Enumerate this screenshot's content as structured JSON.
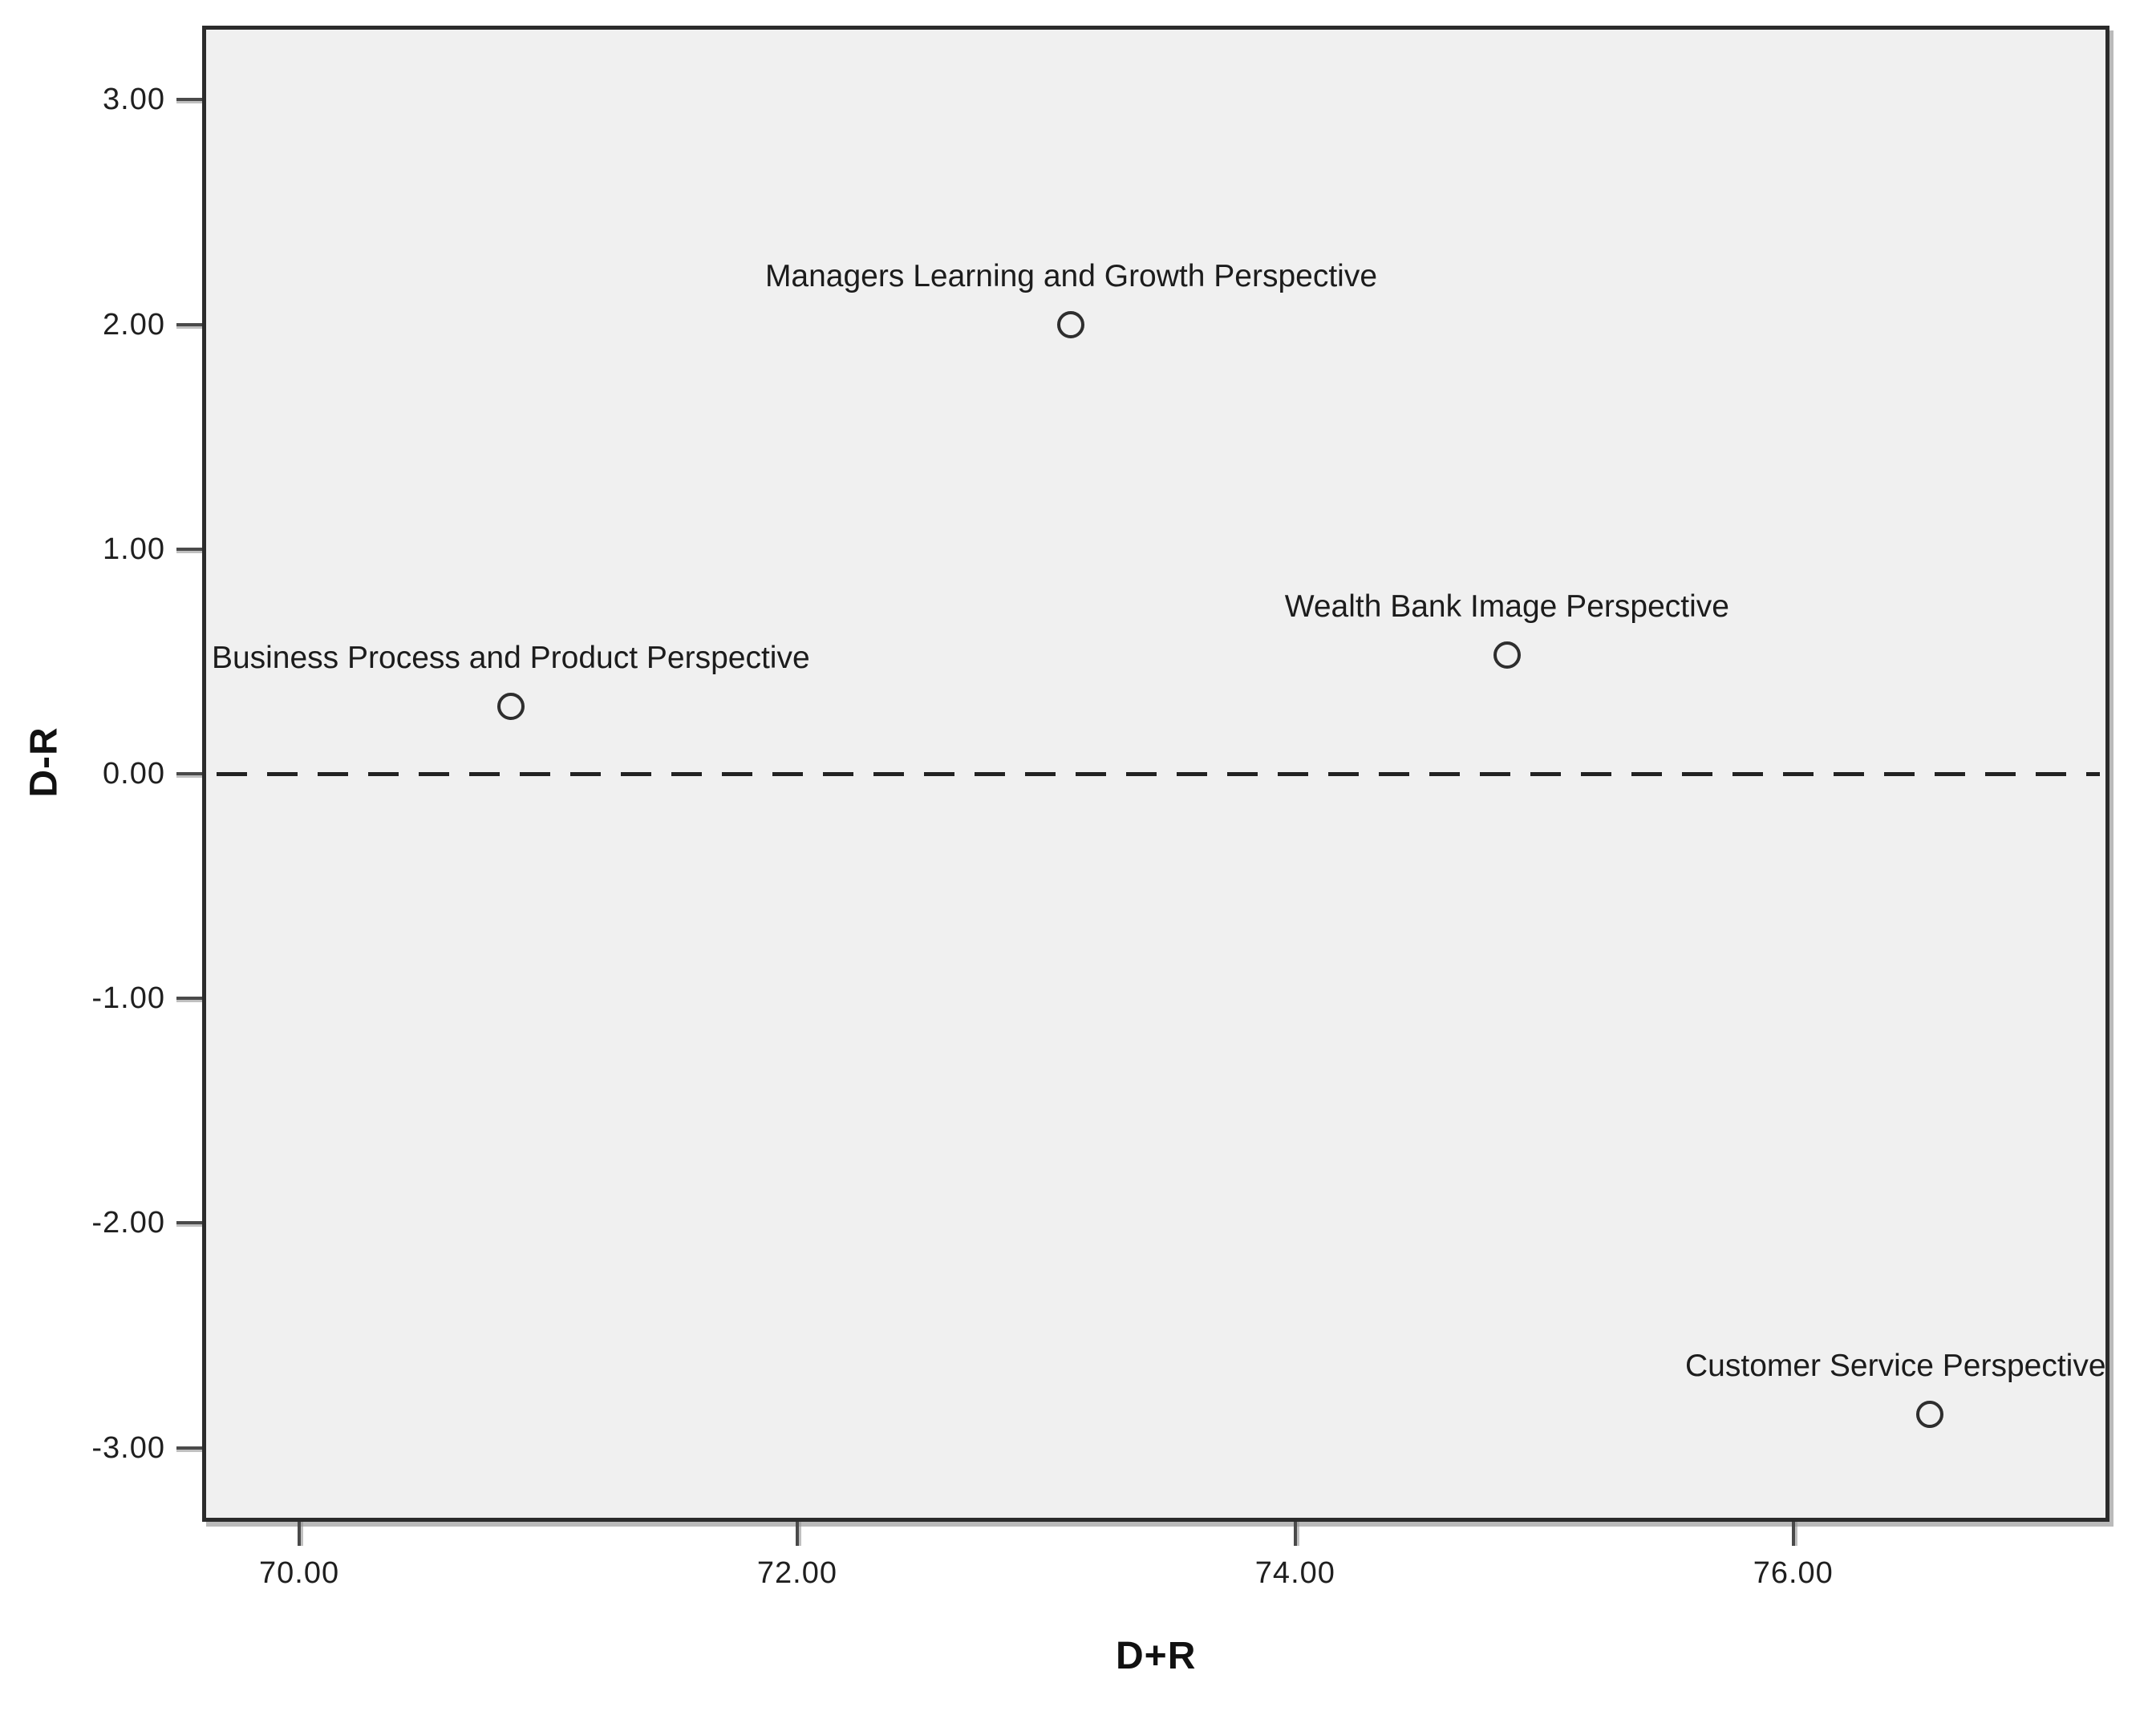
{
  "chart_data": {
    "type": "scatter",
    "title": "",
    "xlabel": "D+R",
    "ylabel": "D-R",
    "xlim": [
      69.61,
      77.27
    ],
    "ylim": [
      -3.33,
      3.33
    ],
    "grid": false,
    "plot_background": "#f0f0f0",
    "frame_color": "#2b2b2b",
    "marker_style": "open-circle",
    "marker_color": "#2e2e2e",
    "reference_line": {
      "y": 0,
      "style": "dashed",
      "color": "#222222"
    },
    "x_ticks": [
      {
        "value": 70,
        "label": "70.00"
      },
      {
        "value": 72,
        "label": "72.00"
      },
      {
        "value": 74,
        "label": "74.00"
      },
      {
        "value": 76,
        "label": "76.00"
      }
    ],
    "y_ticks": [
      {
        "value": 3,
        "label": "3.00"
      },
      {
        "value": 2,
        "label": "2.00"
      },
      {
        "value": 1,
        "label": "1.00"
      },
      {
        "value": 0,
        "label": "0.00"
      },
      {
        "value": -1,
        "label": "-1.00"
      },
      {
        "value": -2,
        "label": "-2.00"
      },
      {
        "value": -3,
        "label": "-3.00"
      }
    ],
    "points": [
      {
        "label": "Managers Learning and Growth Perspective",
        "x": 73.1,
        "y": 2.0
      },
      {
        "label": "Business Process and Product Perspective",
        "x": 70.85,
        "y": 0.3
      },
      {
        "label": "Wealth Bank Image Perspective",
        "x": 74.85,
        "y": 0.53
      },
      {
        "label": "Customer Service Perspective",
        "x": 76.55,
        "y": -2.85
      }
    ]
  }
}
